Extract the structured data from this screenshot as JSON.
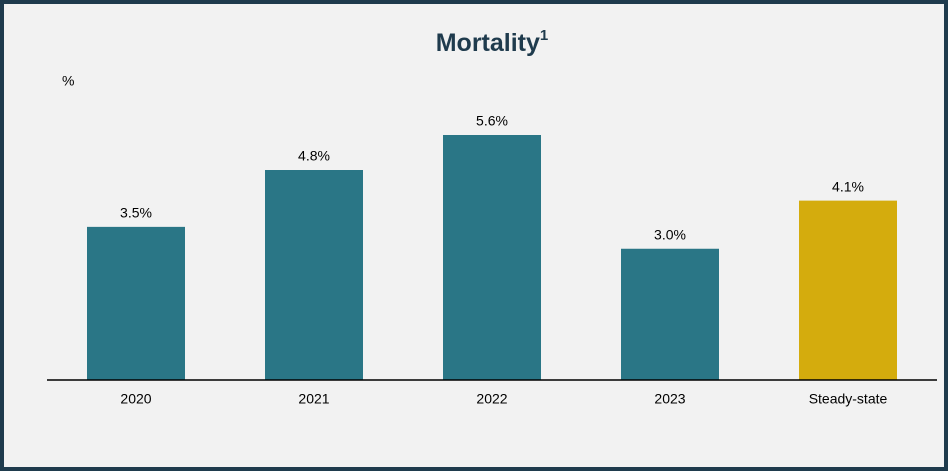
{
  "chart_data": {
    "type": "bar",
    "title": "Mortality",
    "title_superscript": "1",
    "y_label": "%",
    "categories": [
      "2020",
      "2021",
      "2022",
      "2023",
      "Steady-state"
    ],
    "values": [
      3.5,
      4.8,
      5.6,
      3.0,
      4.1
    ],
    "value_labels": [
      "3.5%",
      "4.8%",
      "5.6%",
      "3.0%",
      "4.1%"
    ],
    "colors": [
      "#2a7686",
      "#2a7686",
      "#2a7686",
      "#2a7686",
      "#d4ac0d"
    ],
    "ylim": [
      0,
      6
    ],
    "grid": false
  }
}
